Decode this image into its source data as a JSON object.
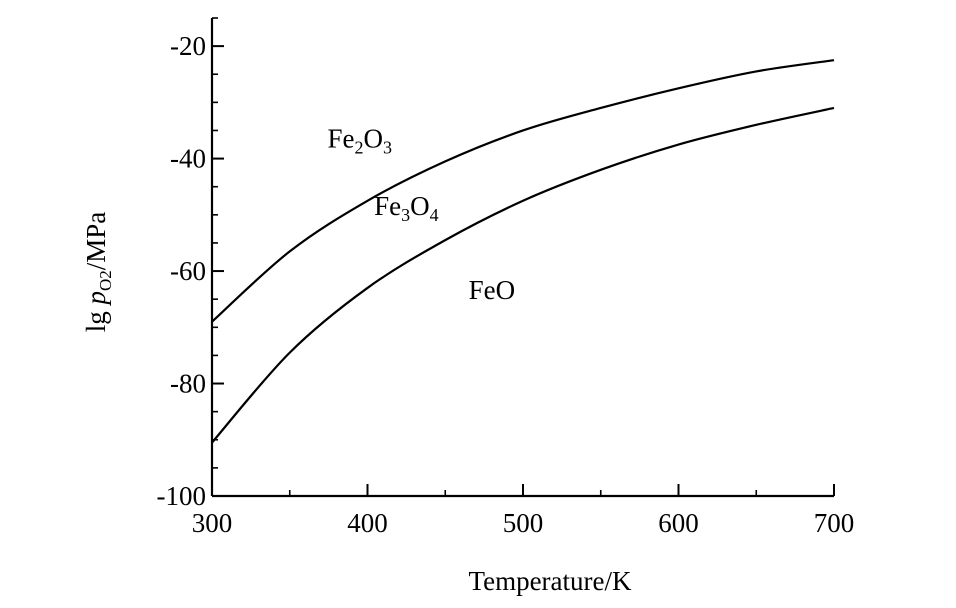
{
  "chart_data": {
    "type": "line",
    "xlabel": "Temperature/K",
    "ylabel": {
      "prefix": "lg ",
      "var": "p",
      "sub": "O2",
      "suffix": "/MPa"
    },
    "xlim": [
      300,
      700
    ],
    "ylim": [
      -100,
      -15
    ],
    "xticks": [
      300,
      400,
      500,
      600,
      700
    ],
    "yticks": [
      -100,
      -80,
      -60,
      -40,
      -20
    ],
    "xtick_labels": [
      "300",
      "400",
      "500",
      "600",
      "700"
    ],
    "ytick_labels": [
      "-100",
      "-80",
      "-60",
      "-40",
      "-20"
    ],
    "grid": false,
    "series": [
      {
        "key": "upper",
        "x": [
          300,
          350,
          400,
          450,
          500,
          550,
          600,
          650,
          700
        ],
        "y": [
          -69,
          -56.5,
          -47.5,
          -40.5,
          -35,
          -31,
          -27.5,
          -24.5,
          -22.5
        ]
      },
      {
        "key": "lower",
        "x": [
          300,
          350,
          400,
          450,
          500,
          550,
          600,
          650,
          700
        ],
        "y": [
          -90.5,
          -74.5,
          -63,
          -54.5,
          -47.5,
          -42,
          -37.5,
          -34,
          -31
        ]
      }
    ],
    "region_labels": [
      {
        "key": "fe2o3",
        "parts": [
          [
            "Fe",
            ""
          ],
          [
            "2",
            "sub"
          ],
          [
            "O",
            ""
          ],
          [
            "3",
            "sub"
          ]
        ],
        "x": 395,
        "y": -38
      },
      {
        "key": "fe3o4",
        "parts": [
          [
            "Fe",
            ""
          ],
          [
            "3",
            "sub"
          ],
          [
            "O",
            ""
          ],
          [
            "4",
            "sub"
          ]
        ],
        "x": 425,
        "y": -50
      },
      {
        "key": "feo",
        "parts": [
          [
            "FeO",
            ""
          ]
        ],
        "x": 480,
        "y": -65
      }
    ]
  }
}
